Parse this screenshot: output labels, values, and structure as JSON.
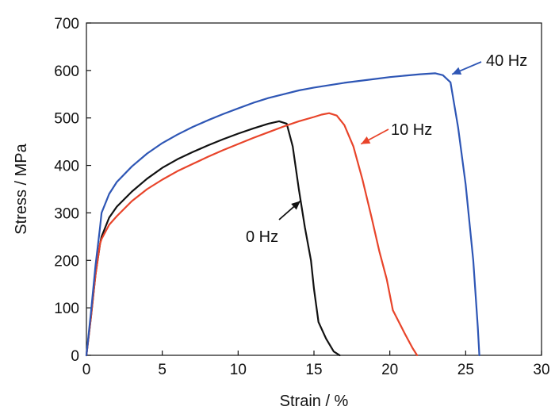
{
  "chart_data": {
    "type": "line",
    "xlabel": "Strain / %",
    "ylabel": "Stress / MPa",
    "xlim": [
      0,
      30
    ],
    "ylim": [
      0,
      700
    ],
    "xticks": [
      0,
      5,
      10,
      15,
      20,
      25,
      30
    ],
    "yticks": [
      0,
      100,
      200,
      300,
      400,
      500,
      600,
      700
    ],
    "grid": false,
    "series": [
      {
        "name": "0 Hz",
        "color": "#111111",
        "x": [
          0,
          0.3,
          0.6,
          0.9,
          1.0,
          1.5,
          2.0,
          3.0,
          4.0,
          5.0,
          6.0,
          7.0,
          8.0,
          9.0,
          10.0,
          11.0,
          12.0,
          12.7,
          13.2,
          13.6,
          14.0,
          14.4,
          14.8,
          15.0,
          15.3,
          15.8,
          16.3,
          16.7
        ],
        "y": [
          0,
          80,
          170,
          235,
          250,
          290,
          313,
          345,
          372,
          395,
          413,
          428,
          442,
          455,
          467,
          478,
          488,
          493,
          488,
          440,
          350,
          270,
          200,
          140,
          70,
          35,
          8,
          0
        ]
      },
      {
        "name": "10 Hz",
        "color": "#e8442a",
        "x": [
          0,
          0.3,
          0.6,
          0.9,
          1.0,
          1.5,
          2.0,
          3.0,
          4.0,
          5.0,
          6.0,
          7.0,
          8.0,
          9.0,
          10.0,
          11.0,
          12.0,
          13.0,
          14.0,
          15.0,
          15.5,
          16.0,
          16.5,
          17.0,
          17.6,
          18.2,
          18.8,
          19.3,
          19.8,
          20.2,
          21.0,
          21.5,
          21.8
        ],
        "y": [
          0,
          80,
          170,
          235,
          245,
          275,
          293,
          325,
          350,
          370,
          388,
          403,
          418,
          432,
          445,
          458,
          470,
          482,
          493,
          502,
          507,
          510,
          505,
          485,
          440,
          370,
          290,
          220,
          160,
          95,
          45,
          15,
          0
        ]
      },
      {
        "name": "40 Hz",
        "color": "#2e56b5",
        "x": [
          0,
          0.3,
          0.6,
          0.9,
          1.0,
          1.5,
          2.0,
          3.0,
          4.0,
          5.0,
          6.0,
          7.0,
          8.0,
          9.0,
          10.0,
          11.0,
          12.0,
          13.0,
          14.0,
          15.0,
          16.0,
          17.0,
          18.0,
          19.0,
          20.0,
          21.0,
          22.0,
          22.5,
          23.0,
          23.5,
          24.0,
          24.5,
          25.0,
          25.5,
          25.8,
          25.9
        ],
        "y": [
          0,
          90,
          190,
          270,
          300,
          340,
          365,
          398,
          425,
          447,
          465,
          481,
          495,
          508,
          520,
          532,
          542,
          550,
          558,
          564,
          569,
          574,
          578,
          582,
          586,
          589,
          592,
          593,
          594,
          590,
          575,
          480,
          360,
          200,
          60,
          0
        ]
      }
    ],
    "annotations": [
      {
        "text": "0 Hz",
        "series": "0 Hz",
        "arrow_to": [
          14.1,
          325
        ]
      },
      {
        "text": "10 Hz",
        "series": "10 Hz",
        "arrow_to": [
          18.1,
          445
        ]
      },
      {
        "text": "40 Hz",
        "series": "40 Hz",
        "arrow_to": [
          24.1,
          592
        ]
      }
    ]
  }
}
